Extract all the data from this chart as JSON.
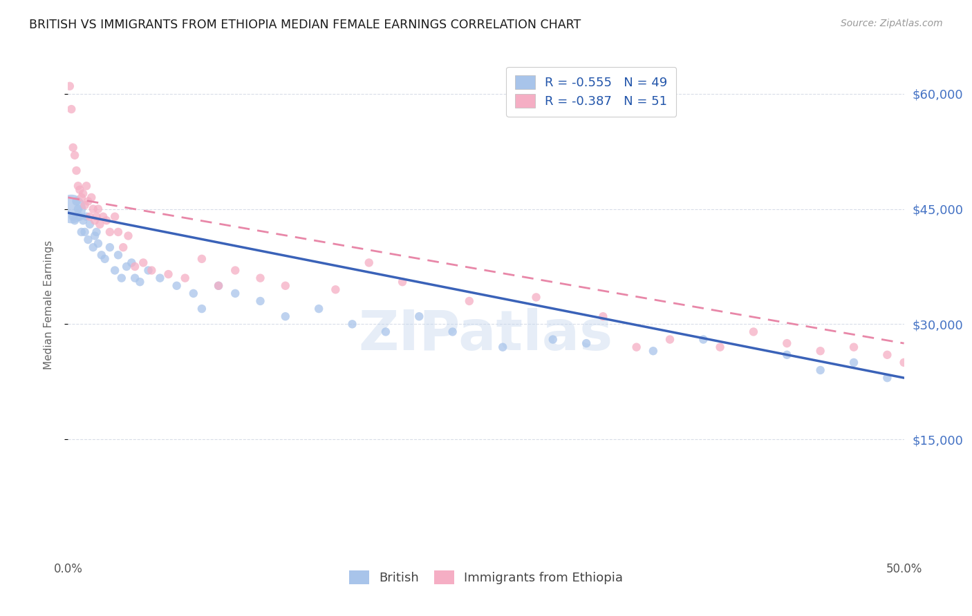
{
  "title": "BRITISH VS IMMIGRANTS FROM ETHIOPIA MEDIAN FEMALE EARNINGS CORRELATION CHART",
  "source": "Source: ZipAtlas.com",
  "ylabel": "Median Female Earnings",
  "yticks": [
    15000,
    30000,
    45000,
    60000
  ],
  "ytick_labels": [
    "$15,000",
    "$30,000",
    "$45,000",
    "$60,000"
  ],
  "watermark": "ZIPatlas",
  "legend_british_R": "-0.555",
  "legend_british_N": "49",
  "legend_ethiopia_R": "-0.387",
  "legend_ethiopia_N": "51",
  "british_color": "#a8c4ea",
  "ethiopia_color": "#f5aec4",
  "british_line_color": "#3a62b8",
  "ethiopia_line_color": "#e887a8",
  "background_color": "#ffffff",
  "grid_color": "#d8dde8",
  "title_color": "#1a1a1a",
  "axis_label_color": "#666666",
  "right_ytick_color": "#4472c4",
  "british_scatter_x": [
    0.002,
    0.003,
    0.004,
    0.005,
    0.006,
    0.007,
    0.008,
    0.009,
    0.01,
    0.011,
    0.012,
    0.013,
    0.015,
    0.016,
    0.017,
    0.018,
    0.02,
    0.022,
    0.025,
    0.028,
    0.03,
    0.032,
    0.035,
    0.038,
    0.04,
    0.043,
    0.048,
    0.055,
    0.065,
    0.075,
    0.08,
    0.09,
    0.1,
    0.115,
    0.13,
    0.15,
    0.17,
    0.19,
    0.21,
    0.23,
    0.26,
    0.29,
    0.31,
    0.35,
    0.38,
    0.43,
    0.45,
    0.47,
    0.49
  ],
  "british_scatter_y": [
    45000,
    44000,
    43500,
    46000,
    45000,
    44000,
    42000,
    43500,
    42000,
    44000,
    41000,
    43000,
    40000,
    41500,
    42000,
    40500,
    39000,
    38500,
    40000,
    37000,
    39000,
    36000,
    37500,
    38000,
    36000,
    35500,
    37000,
    36000,
    35000,
    34000,
    32000,
    35000,
    34000,
    33000,
    31000,
    32000,
    30000,
    29000,
    31000,
    29000,
    27000,
    28000,
    27500,
    26500,
    28000,
    26000,
    24000,
    25000,
    23000
  ],
  "british_scatter_sizes": [
    80,
    80,
    80,
    80,
    80,
    80,
    80,
    80,
    80,
    80,
    80,
    80,
    80,
    80,
    80,
    80,
    80,
    80,
    80,
    80,
    80,
    80,
    80,
    80,
    80,
    80,
    80,
    80,
    80,
    80,
    80,
    80,
    80,
    80,
    80,
    80,
    80,
    80,
    80,
    80,
    80,
    80,
    80,
    80,
    80,
    80,
    80,
    80,
    80
  ],
  "british_scatter_large": [
    0,
    1
  ],
  "ethiopia_scatter_x": [
    0.001,
    0.002,
    0.003,
    0.004,
    0.005,
    0.006,
    0.007,
    0.008,
    0.009,
    0.01,
    0.011,
    0.012,
    0.013,
    0.014,
    0.015,
    0.016,
    0.017,
    0.018,
    0.019,
    0.021,
    0.023,
    0.025,
    0.028,
    0.03,
    0.033,
    0.036,
    0.04,
    0.045,
    0.05,
    0.06,
    0.07,
    0.08,
    0.09,
    0.1,
    0.115,
    0.13,
    0.16,
    0.2,
    0.24,
    0.28,
    0.32,
    0.36,
    0.39,
    0.41,
    0.43,
    0.45,
    0.47,
    0.49,
    0.5,
    0.18,
    0.34
  ],
  "ethiopia_scatter_y": [
    61000,
    58000,
    53000,
    52000,
    50000,
    48000,
    47500,
    46500,
    47000,
    45500,
    48000,
    46000,
    44000,
    46500,
    45000,
    43500,
    44000,
    45000,
    43000,
    44000,
    43500,
    42000,
    44000,
    42000,
    40000,
    41500,
    37500,
    38000,
    37000,
    36500,
    36000,
    38500,
    35000,
    37000,
    36000,
    35000,
    34500,
    35500,
    33000,
    33500,
    31000,
    28000,
    27000,
    29000,
    27500,
    26500,
    27000,
    26000,
    25000,
    38000,
    27000
  ],
  "xlim": [
    0.0,
    0.5
  ],
  "ylim": [
    0,
    65000
  ],
  "british_line": {
    "x0": 0.0,
    "y0": 44500,
    "x1": 0.5,
    "y1": 23000
  },
  "ethiopia_line": {
    "x0": 0.0,
    "y0": 46500,
    "x1": 0.5,
    "y1": 27500
  }
}
